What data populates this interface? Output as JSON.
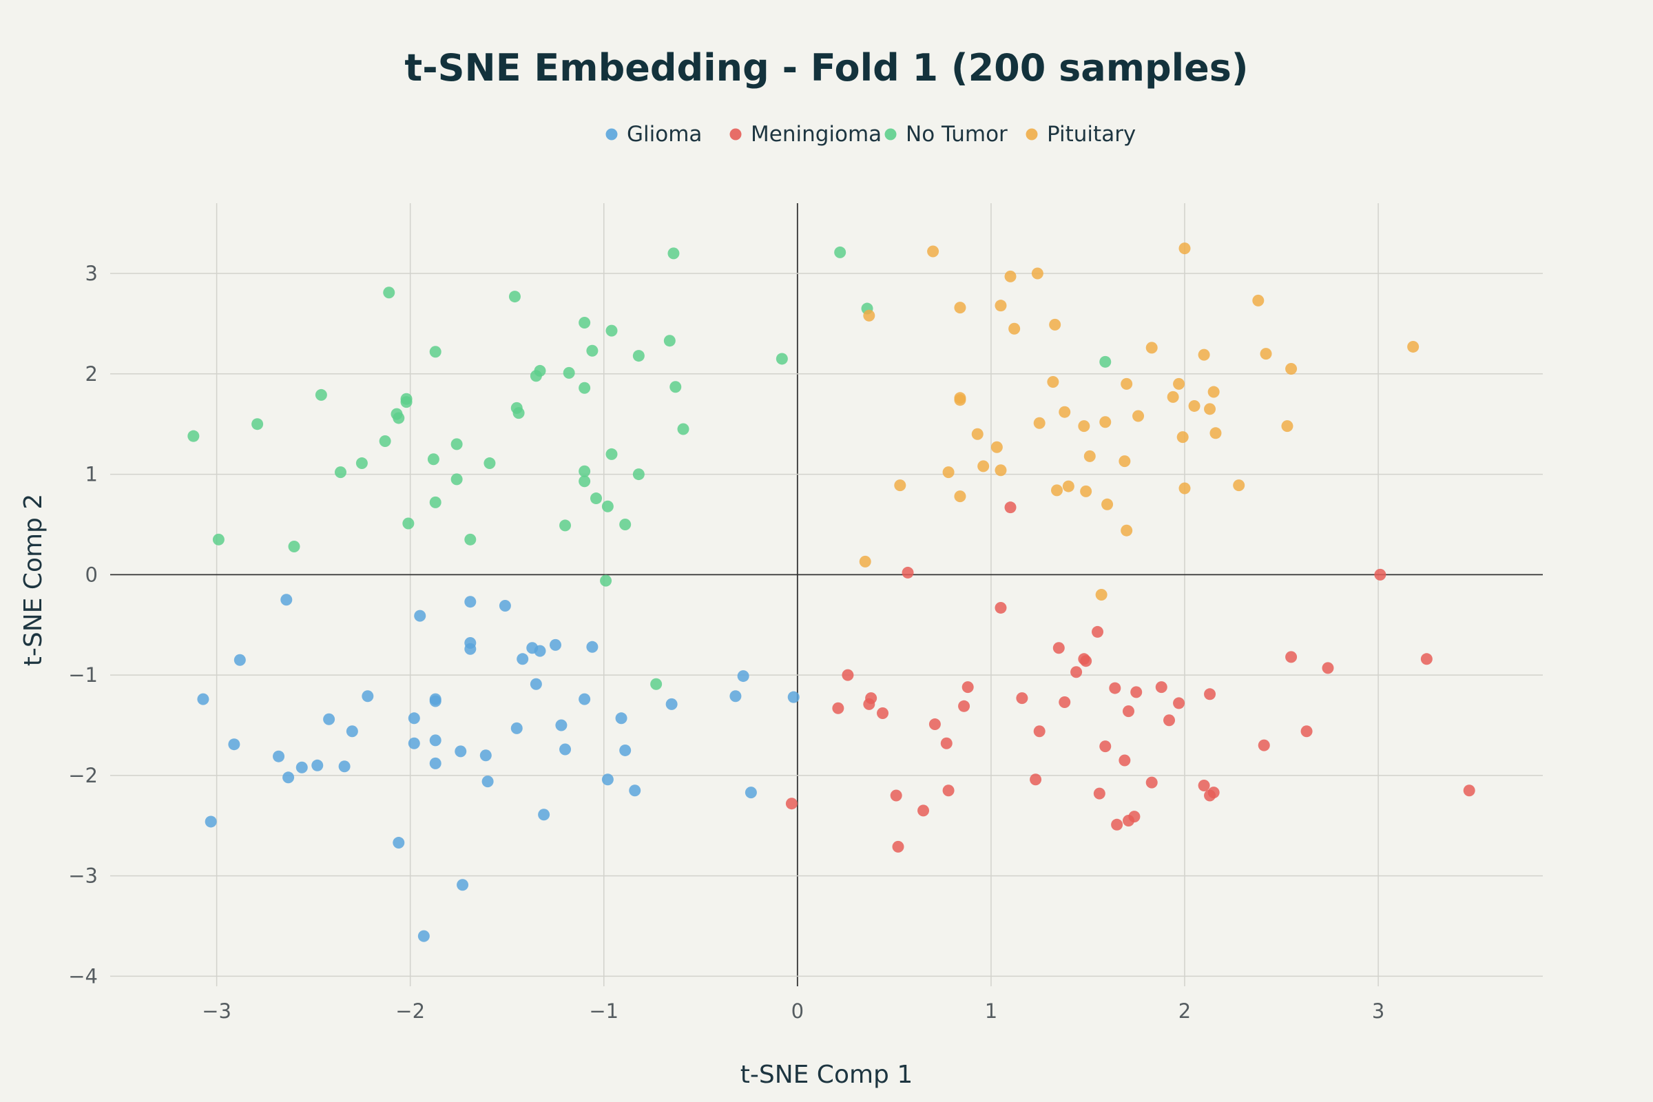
{
  "chart_data": {
    "type": "scatter",
    "title": "t-SNE Embedding - Fold 1 (200 samples)",
    "xlabel": "t-SNE Comp 1",
    "ylabel": "t-SNE Comp 2",
    "xlim": [
      -3.55,
      3.85
    ],
    "ylim": [
      -4.1,
      3.7
    ],
    "xticks": [
      -3,
      -2,
      -1,
      0,
      1,
      2,
      3
    ],
    "yticks": [
      -4,
      -3,
      -2,
      -1,
      0,
      1,
      2,
      3
    ],
    "xtick_labels": [
      "−3",
      "−2",
      "−1",
      "0",
      "1",
      "2",
      "3"
    ],
    "ytick_labels": [
      "−4",
      "−3",
      "−2",
      "−1",
      "0",
      "1",
      "2",
      "3"
    ],
    "grid": true,
    "legend_position": "top-center",
    "series": [
      {
        "name": "Glioma",
        "color": "#5aa5dc",
        "points": [
          [
            -3.07,
            -1.24
          ],
          [
            -3.03,
            -2.46
          ],
          [
            -2.91,
            -1.69
          ],
          [
            -2.88,
            -0.85
          ],
          [
            -2.68,
            -1.81
          ],
          [
            -2.64,
            -0.25
          ],
          [
            -2.63,
            -2.02
          ],
          [
            -2.56,
            -1.92
          ],
          [
            -2.48,
            -1.9
          ],
          [
            -2.42,
            -1.44
          ],
          [
            -2.34,
            -1.91
          ],
          [
            -2.3,
            -1.56
          ],
          [
            -2.22,
            -1.21
          ],
          [
            -2.06,
            -2.67
          ],
          [
            -1.98,
            -1.43
          ],
          [
            -1.98,
            -1.68
          ],
          [
            -1.95,
            -0.41
          ],
          [
            -1.93,
            -3.6
          ],
          [
            -1.87,
            -1.24
          ],
          [
            -1.87,
            -1.26
          ],
          [
            -1.87,
            -1.65
          ],
          [
            -1.87,
            -1.88
          ],
          [
            -1.74,
            -1.76
          ],
          [
            -1.73,
            -3.09
          ],
          [
            -1.69,
            -0.27
          ],
          [
            -1.69,
            -0.68
          ],
          [
            -1.69,
            -0.74
          ],
          [
            -1.61,
            -1.8
          ],
          [
            -1.6,
            -2.06
          ],
          [
            -1.51,
            -0.31
          ],
          [
            -1.45,
            -1.53
          ],
          [
            -1.42,
            -0.84
          ],
          [
            -1.37,
            -0.73
          ],
          [
            -1.35,
            -1.09
          ],
          [
            -1.33,
            -0.76
          ],
          [
            -1.31,
            -2.39
          ],
          [
            -1.25,
            -0.7
          ],
          [
            -1.22,
            -1.5
          ],
          [
            -1.2,
            -1.74
          ],
          [
            -1.1,
            -1.24
          ],
          [
            -1.06,
            -0.72
          ],
          [
            -0.98,
            -2.04
          ],
          [
            -0.91,
            -1.43
          ],
          [
            -0.89,
            -1.75
          ],
          [
            -0.84,
            -2.15
          ],
          [
            -0.65,
            -1.29
          ],
          [
            -0.32,
            -1.21
          ],
          [
            -0.28,
            -1.01
          ],
          [
            -0.24,
            -2.17
          ],
          [
            -0.02,
            -1.22
          ]
        ]
      },
      {
        "name": "Meningioma",
        "color": "#e65e58",
        "points": [
          [
            -0.03,
            -2.28
          ],
          [
            0.21,
            -1.33
          ],
          [
            0.26,
            -1.0
          ],
          [
            0.37,
            -1.29
          ],
          [
            0.38,
            -1.23
          ],
          [
            0.44,
            -1.38
          ],
          [
            0.51,
            -2.2
          ],
          [
            0.52,
            -2.71
          ],
          [
            0.57,
            0.02
          ],
          [
            0.65,
            -2.35
          ],
          [
            0.71,
            -1.49
          ],
          [
            0.77,
            -1.68
          ],
          [
            0.78,
            -2.15
          ],
          [
            0.86,
            -1.31
          ],
          [
            0.88,
            -1.12
          ],
          [
            1.05,
            -0.33
          ],
          [
            1.1,
            0.67
          ],
          [
            1.16,
            -1.23
          ],
          [
            1.23,
            -2.04
          ],
          [
            1.25,
            -1.56
          ],
          [
            1.35,
            -0.73
          ],
          [
            1.38,
            -1.27
          ],
          [
            1.44,
            -0.97
          ],
          [
            1.48,
            -0.84
          ],
          [
            1.49,
            -0.86
          ],
          [
            1.55,
            -0.57
          ],
          [
            1.56,
            -2.18
          ],
          [
            1.59,
            -1.71
          ],
          [
            1.64,
            -1.13
          ],
          [
            1.65,
            -2.49
          ],
          [
            1.69,
            -1.85
          ],
          [
            1.71,
            -1.36
          ],
          [
            1.71,
            -2.45
          ],
          [
            1.74,
            -2.41
          ],
          [
            1.75,
            -1.17
          ],
          [
            1.83,
            -2.07
          ],
          [
            1.88,
            -1.12
          ],
          [
            1.92,
            -1.45
          ],
          [
            1.97,
            -1.28
          ],
          [
            2.1,
            -2.1
          ],
          [
            2.13,
            -1.19
          ],
          [
            2.13,
            -2.2
          ],
          [
            2.15,
            -2.17
          ],
          [
            2.41,
            -1.7
          ],
          [
            2.55,
            -0.82
          ],
          [
            2.63,
            -1.56
          ],
          [
            2.74,
            -0.93
          ],
          [
            3.01,
            0.0
          ],
          [
            3.25,
            -0.84
          ],
          [
            3.47,
            -2.15
          ]
        ]
      },
      {
        "name": "No Tumor",
        "color": "#5ecf8c",
        "points": [
          [
            -3.12,
            1.38
          ],
          [
            -2.99,
            0.35
          ],
          [
            -2.79,
            1.5
          ],
          [
            -2.6,
            0.28
          ],
          [
            -2.46,
            1.79
          ],
          [
            -2.36,
            1.02
          ],
          [
            -2.25,
            1.11
          ],
          [
            -2.13,
            1.33
          ],
          [
            -2.11,
            2.81
          ],
          [
            -2.07,
            1.6
          ],
          [
            -2.06,
            1.56
          ],
          [
            -2.02,
            1.72
          ],
          [
            -2.02,
            1.75
          ],
          [
            -2.01,
            0.51
          ],
          [
            -1.88,
            1.15
          ],
          [
            -1.87,
            2.22
          ],
          [
            -1.87,
            0.72
          ],
          [
            -1.76,
            1.3
          ],
          [
            -1.76,
            0.95
          ],
          [
            -1.69,
            0.35
          ],
          [
            -1.59,
            1.11
          ],
          [
            -1.46,
            2.77
          ],
          [
            -1.45,
            1.66
          ],
          [
            -1.44,
            1.61
          ],
          [
            -1.35,
            1.98
          ],
          [
            -1.33,
            2.03
          ],
          [
            -1.2,
            0.49
          ],
          [
            -1.18,
            2.01
          ],
          [
            -1.1,
            2.51
          ],
          [
            -1.1,
            1.03
          ],
          [
            -1.1,
            0.93
          ],
          [
            -1.1,
            1.86
          ],
          [
            -1.06,
            2.23
          ],
          [
            -1.04,
            0.76
          ],
          [
            -0.98,
            0.68
          ],
          [
            -0.96,
            2.43
          ],
          [
            -0.96,
            1.2
          ],
          [
            -0.89,
            0.5
          ],
          [
            -0.82,
            2.18
          ],
          [
            -0.82,
            1.0
          ],
          [
            -0.73,
            -1.09
          ],
          [
            -0.66,
            2.33
          ],
          [
            -0.64,
            3.2
          ],
          [
            -0.63,
            1.87
          ],
          [
            -0.59,
            1.45
          ],
          [
            -0.08,
            2.15
          ],
          [
            0.22,
            3.21
          ],
          [
            0.36,
            2.65
          ],
          [
            1.59,
            2.12
          ],
          [
            -0.99,
            -0.06
          ]
        ]
      },
      {
        "name": "Pituitary",
        "color": "#f0ad48",
        "points": [
          [
            0.35,
            0.13
          ],
          [
            0.37,
            2.58
          ],
          [
            0.53,
            0.89
          ],
          [
            0.7,
            3.22
          ],
          [
            0.78,
            1.02
          ],
          [
            0.84,
            0.78
          ],
          [
            0.84,
            2.66
          ],
          [
            0.84,
            1.76
          ],
          [
            0.84,
            1.74
          ],
          [
            0.93,
            1.4
          ],
          [
            0.96,
            1.08
          ],
          [
            1.03,
            1.27
          ],
          [
            1.05,
            1.04
          ],
          [
            1.05,
            2.68
          ],
          [
            1.1,
            2.97
          ],
          [
            1.12,
            2.45
          ],
          [
            1.24,
            3.0
          ],
          [
            1.25,
            1.51
          ],
          [
            1.32,
            1.92
          ],
          [
            1.33,
            2.49
          ],
          [
            1.34,
            0.84
          ],
          [
            1.38,
            1.62
          ],
          [
            1.4,
            0.88
          ],
          [
            1.48,
            1.48
          ],
          [
            1.49,
            0.83
          ],
          [
            1.51,
            1.18
          ],
          [
            1.57,
            -0.2
          ],
          [
            1.59,
            1.52
          ],
          [
            1.6,
            0.7
          ],
          [
            1.69,
            1.13
          ],
          [
            1.7,
            0.44
          ],
          [
            1.7,
            1.9
          ],
          [
            1.76,
            1.58
          ],
          [
            1.83,
            2.26
          ],
          [
            1.94,
            1.77
          ],
          [
            1.97,
            1.9
          ],
          [
            1.99,
            1.37
          ],
          [
            2.0,
            0.86
          ],
          [
            2.0,
            3.25
          ],
          [
            2.05,
            1.68
          ],
          [
            2.1,
            2.19
          ],
          [
            2.13,
            1.65
          ],
          [
            2.15,
            1.82
          ],
          [
            2.16,
            1.41
          ],
          [
            2.28,
            0.89
          ],
          [
            2.38,
            2.73
          ],
          [
            2.42,
            2.2
          ],
          [
            2.53,
            1.48
          ],
          [
            2.55,
            2.05
          ],
          [
            3.18,
            2.27
          ]
        ]
      }
    ]
  }
}
